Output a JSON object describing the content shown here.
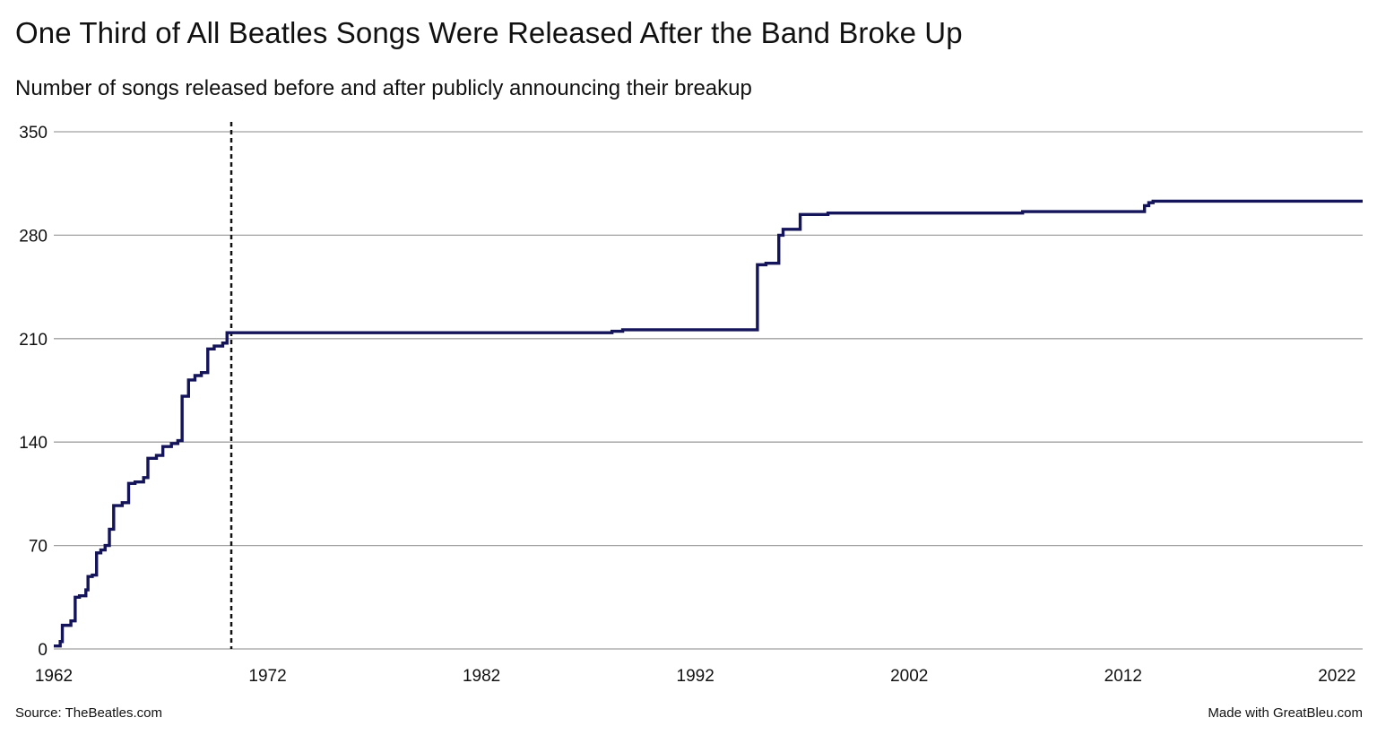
{
  "title": "One Third of All Beatles Songs Were Released After the Band Broke Up",
  "subtitle": "Number of songs released before and after publicly announcing their breakup",
  "source": "Source: TheBeatles.com",
  "credit": "Made with GreatBleu.com",
  "colors": {
    "line": "#14145a",
    "grid": "#a0a0a0",
    "marker": "#111111"
  },
  "chart_data": {
    "type": "line",
    "step": true,
    "title": "One Third of All Beatles Songs Were Released After the Band Broke Up",
    "subtitle": "Number of songs released before and after publicly announcing their breakup",
    "xlabel": "",
    "ylabel": "",
    "xlim": [
      1962,
      2023.2
    ],
    "ylim": [
      0,
      350
    ],
    "x_ticks": [
      1962,
      1972,
      1982,
      1992,
      2002,
      2012,
      2022
    ],
    "y_ticks": [
      0,
      70,
      140,
      210,
      280,
      350
    ],
    "grid": "horizontal",
    "annotation": {
      "type": "vertical-dashed-line",
      "x": 1970.3
    },
    "series": [
      {
        "x": [
          1962.0,
          1962.3,
          1962.4,
          1962.8,
          1963.0,
          1963.2,
          1963.5,
          1963.6,
          1963.8,
          1964.0,
          1964.2,
          1964.4,
          1964.6,
          1964.8,
          1965.2,
          1965.5,
          1965.8,
          1966.2,
          1966.4,
          1966.8,
          1967.1,
          1967.5,
          1967.8,
          1968.0,
          1968.3,
          1968.6,
          1968.9,
          1969.2,
          1969.5,
          1969.9,
          1970.1,
          1970.3,
          1988.1,
          1988.6,
          1994.9,
          1995.3,
          1995.9,
          1996.1,
          1996.9,
          1998.2,
          2007.3,
          2013.0,
          2013.2,
          2013.4,
          2023.2
        ],
        "y": [
          2,
          5,
          16,
          19,
          35,
          36,
          40,
          49,
          50,
          65,
          67,
          70,
          81,
          97,
          99,
          112,
          113,
          116,
          129,
          131,
          137,
          139,
          141,
          171,
          182,
          185,
          187,
          203,
          205,
          207,
          214,
          214,
          215,
          216,
          260,
          261,
          280,
          284,
          294,
          295,
          296,
          300,
          302,
          303,
          303
        ]
      }
    ]
  }
}
